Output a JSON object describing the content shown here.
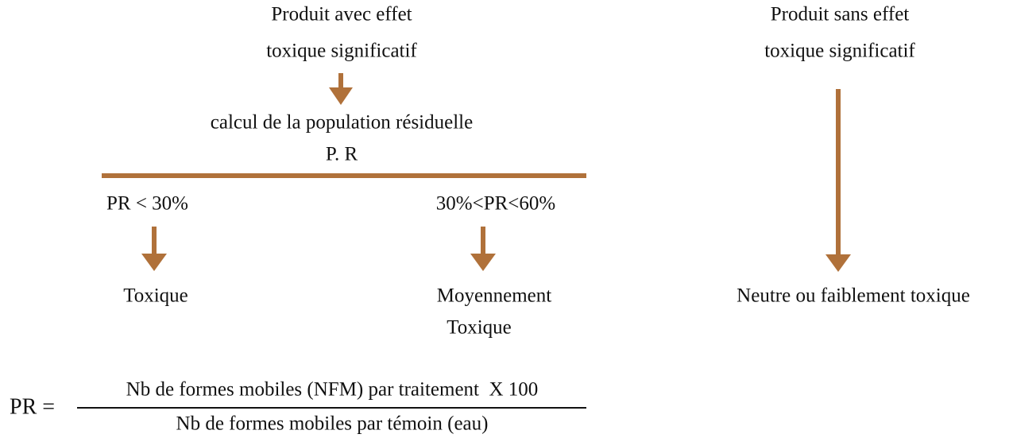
{
  "nodes": [
    {
      "label": "Produit avec effet"
    },
    {
      "label": "toxique significatif"
    },
    {
      "label": "calcul de la population résiduelle"
    },
    {
      "label": "P. R"
    },
    {
      "label": "PR < 30%"
    },
    {
      "label": "30%<PR<60%"
    },
    {
      "label": "Toxique"
    },
    {
      "label": "Moyennement"
    },
    {
      "label": "Toxique"
    },
    {
      "label": "Produit sans effet"
    },
    {
      "label": "toxique significatif"
    },
    {
      "label": "Neutre ou faiblement toxique"
    }
  ],
  "formula": {
    "lhs": "PR =",
    "numerator": "Nb de formes mobiles (NFM) par traitement  X 100",
    "denominator": "Nb de formes mobiles par témoin (eau)"
  }
}
